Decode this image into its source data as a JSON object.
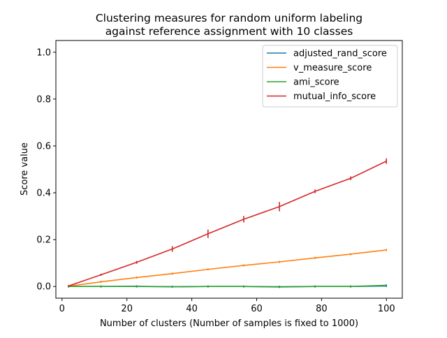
{
  "chart_data": {
    "type": "line",
    "title_lines": [
      "Clustering measures for random uniform labeling",
      "against reference assignment with 10 classes"
    ],
    "xlabel": "Number of clusters (Number of samples is fixed to 1000)",
    "ylabel": "Score value",
    "xlim": [
      -1.9,
      104.9
    ],
    "ylim": [
      -0.05,
      1.05
    ],
    "xticks": [
      0,
      20,
      40,
      60,
      80,
      100
    ],
    "xtick_labels": [
      "0",
      "20",
      "40",
      "60",
      "80",
      "100"
    ],
    "yticks": [
      0.0,
      0.2,
      0.4,
      0.6,
      0.8,
      1.0
    ],
    "ytick_labels": [
      "0.0",
      "0.2",
      "0.4",
      "0.6",
      "0.8",
      "1.0"
    ],
    "grid": false,
    "legend_position": "top-right",
    "x": [
      2,
      12,
      23,
      34,
      45,
      56,
      67,
      78,
      89,
      100
    ],
    "series": [
      {
        "name": "adjusted_rand_score",
        "color": "#1f77b4",
        "values": [
          0.0,
          0.0,
          0.0,
          -0.001,
          0.0,
          0.0,
          -0.001,
          0.0,
          0.0,
          0.002
        ],
        "errors": [
          0.0,
          0.0,
          0.0,
          0.0,
          0.0,
          0.0,
          0.0,
          0.0,
          0.0,
          0.0
        ]
      },
      {
        "name": "v_measure_score",
        "color": "#ff7f0e",
        "values": [
          0.001,
          0.02,
          0.038,
          0.055,
          0.073,
          0.09,
          0.105,
          0.122,
          0.138,
          0.156
        ],
        "errors": [
          0.0,
          0.0,
          0.0,
          0.0,
          0.0,
          0.0,
          0.0,
          0.0,
          0.0,
          0.0
        ]
      },
      {
        "name": "ami_score",
        "color": "#2ca02c",
        "values": [
          0.0,
          0.0,
          0.001,
          -0.001,
          0.0,
          0.0,
          -0.002,
          0.0,
          0.0,
          0.005
        ],
        "errors": [
          0.001,
          0.001,
          0.002,
          0.002,
          0.003,
          0.002,
          0.004,
          0.002,
          0.002,
          0.003
        ]
      },
      {
        "name": "mutual_info_score",
        "color": "#d62728",
        "values": [
          0.002,
          0.05,
          0.103,
          0.16,
          0.225,
          0.287,
          0.341,
          0.406,
          0.462,
          0.535
        ],
        "errors": [
          0.002,
          0.004,
          0.006,
          0.012,
          0.018,
          0.014,
          0.02,
          0.008,
          0.008,
          0.012
        ]
      }
    ]
  }
}
